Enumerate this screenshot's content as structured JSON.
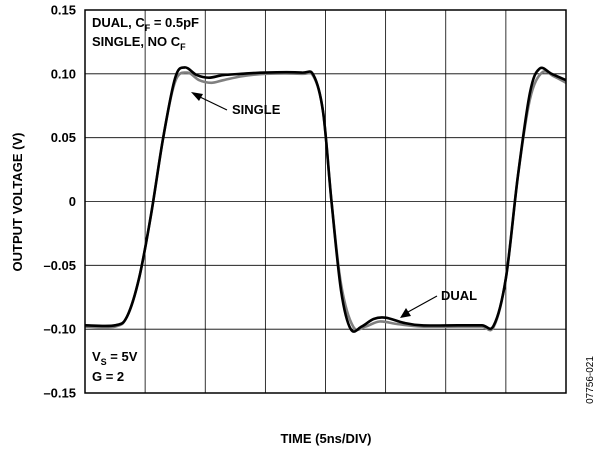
{
  "chart_data": {
    "type": "line",
    "xlabel": "TIME (5ns/DIV)",
    "ylabel": "OUTPUT VOLTAGE (V)",
    "ylim": [
      -0.15,
      0.15
    ],
    "xlim": [
      0,
      40
    ],
    "x_divisions": 8,
    "y_ticks": [
      "0.15",
      "0.10",
      "0.05",
      "0",
      "–0.05",
      "–0.10",
      "–0.15"
    ],
    "y_tick_values": [
      0.15,
      0.1,
      0.05,
      0,
      -0.05,
      -0.1,
      -0.15
    ],
    "grid": true,
    "series": [
      {
        "name": "SINGLE",
        "color": "#808080",
        "x": [
          0,
          2.5,
          3.5,
          4.5,
          5.5,
          6.5,
          7.5,
          8.5,
          9.5,
          10.5,
          11.5,
          13.0,
          15.0,
          18.0,
          19.0,
          19.8,
          20.5,
          21.3,
          22.3,
          23.3,
          24.5,
          26.0,
          28.0,
          31.0,
          33.0,
          34.0,
          35.0,
          36.0,
          37.0,
          38.0,
          39.0,
          40.0
        ],
        "y": [
          -0.098,
          -0.098,
          -0.09,
          -0.06,
          -0.01,
          0.05,
          0.094,
          0.101,
          0.095,
          0.093,
          0.095,
          0.098,
          0.1,
          0.1,
          0.098,
          0.07,
          0.0,
          -0.065,
          -0.098,
          -0.098,
          -0.094,
          -0.096,
          -0.098,
          -0.098,
          -0.098,
          -0.098,
          -0.06,
          0.02,
          0.08,
          0.101,
          0.098,
          0.093
        ]
      },
      {
        "name": "DUAL",
        "color": "#000000",
        "x": [
          0,
          2.5,
          3.5,
          4.5,
          5.5,
          6.5,
          7.5,
          8.3,
          9.3,
          10.3,
          11.5,
          13.0,
          15.0,
          18.0,
          19.0,
          19.8,
          20.5,
          21.3,
          22.1,
          23.0,
          24.0,
          25.0,
          26.5,
          28.0,
          31.0,
          33.0,
          34.0,
          35.0,
          36.0,
          37.0,
          37.8,
          38.8,
          40.0
        ],
        "y": [
          -0.097,
          -0.097,
          -0.09,
          -0.06,
          -0.01,
          0.05,
          0.097,
          0.105,
          0.099,
          0.097,
          0.099,
          0.1,
          0.101,
          0.101,
          0.099,
          0.07,
          0.0,
          -0.07,
          -0.1,
          -0.098,
          -0.092,
          -0.091,
          -0.095,
          -0.097,
          -0.097,
          -0.097,
          -0.097,
          -0.06,
          0.02,
          0.085,
          0.104,
          0.1,
          0.095
        ]
      }
    ],
    "annotations": {
      "legend_line1": "DUAL, C",
      "legend_line1_sub": "F",
      "legend_line1_rest": " = 0.5pF",
      "legend_line2": "SINGLE, NO C",
      "legend_line2_sub": "F",
      "single_label": "SINGLE",
      "dual_label": "DUAL",
      "vs_label": "V",
      "vs_sub": "S",
      "vs_rest": " = 5V",
      "gain_label": "G = 2",
      "figure_id": "07756-021"
    }
  }
}
